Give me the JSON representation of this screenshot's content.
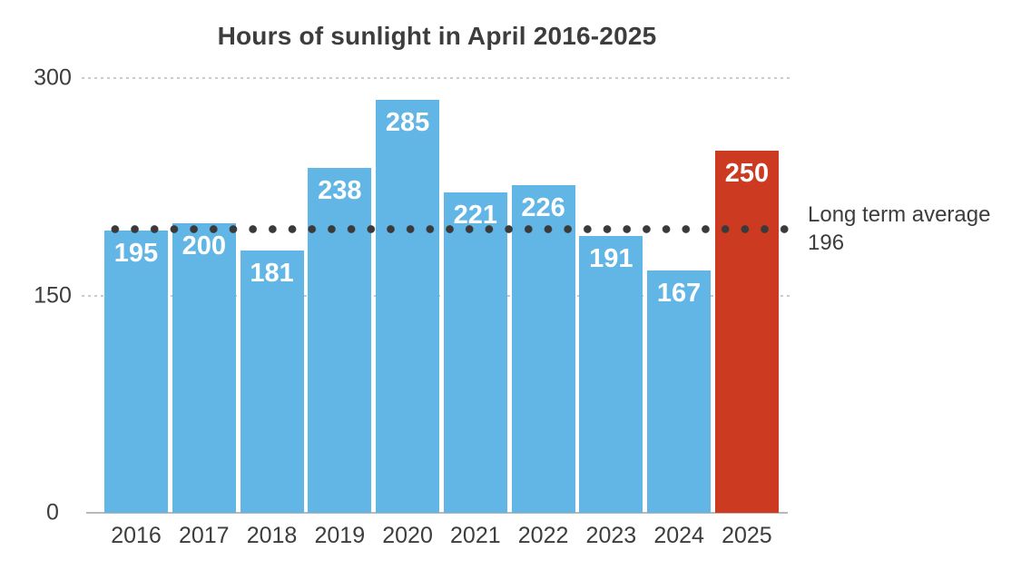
{
  "chart_data": {
    "type": "bar",
    "title": "Hours of sunlight in April 2016-2025",
    "categories": [
      "2016",
      "2017",
      "2018",
      "2019",
      "2020",
      "2021",
      "2022",
      "2023",
      "2024",
      "2025"
    ],
    "values": [
      195,
      200,
      181,
      238,
      285,
      221,
      226,
      191,
      167,
      250
    ],
    "bar_color": "#62b6e5",
    "highlight_color": "#cc3a22",
    "highlight_index": 9,
    "value_label_color": "#ffffff",
    "xlabel": "",
    "ylabel": "",
    "ylim": [
      0,
      300
    ],
    "yticks": [
      "0",
      "150",
      "300"
    ],
    "grid": "horizontal dotted gridlines at 150 and 300, legend none",
    "average_line": {
      "value": 196,
      "label": "Long term average",
      "value_text": "196",
      "style": "round dotted line",
      "color": "#3a3a3a"
    }
  }
}
